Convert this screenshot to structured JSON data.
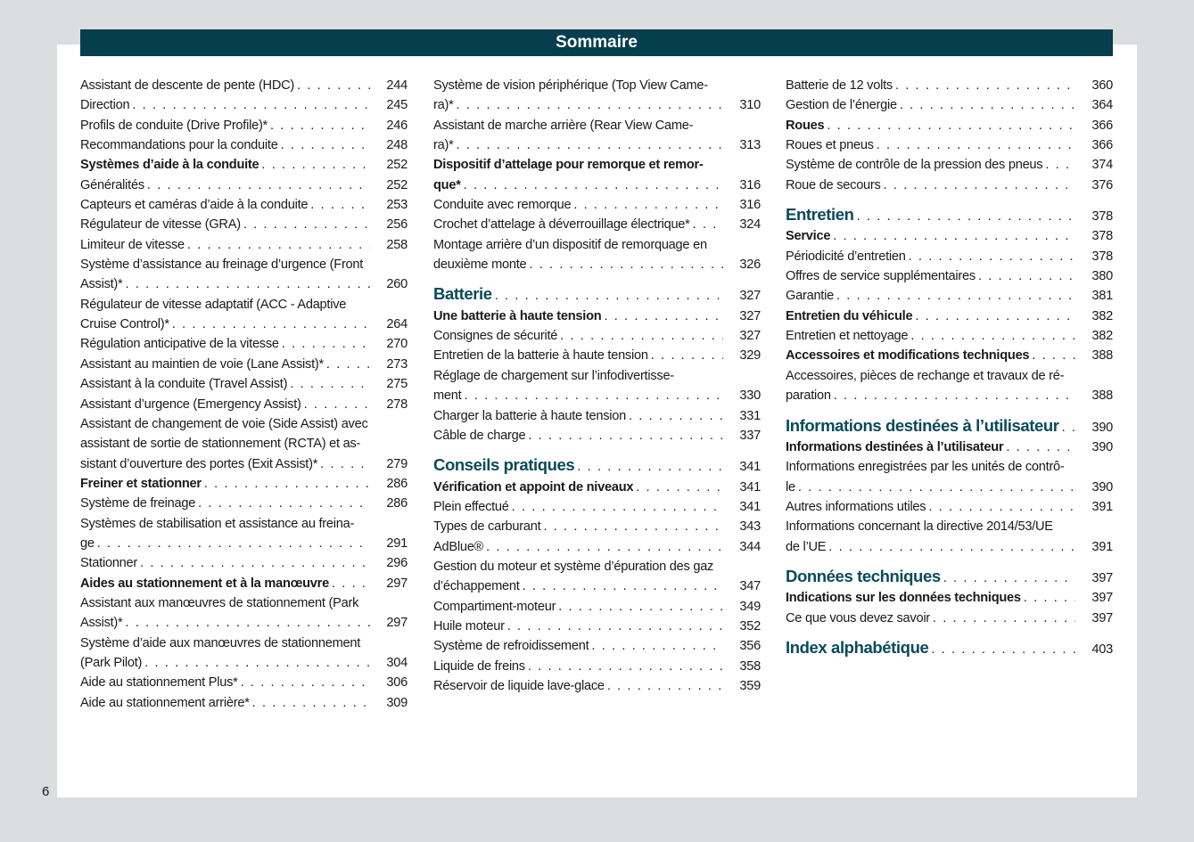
{
  "header": {
    "title": "Sommaire"
  },
  "page_number": "6",
  "columns": [
    [
      {
        "lines": [
          "Assistant de descente de pente (HDC)"
        ],
        "page": "244",
        "style": "n"
      },
      {
        "lines": [
          "Direction"
        ],
        "page": "245",
        "style": "n"
      },
      {
        "lines": [
          "Profils de conduite (Drive Profile)*"
        ],
        "page": "246",
        "style": "n"
      },
      {
        "lines": [
          "Recommandations pour la conduite"
        ],
        "page": "248",
        "style": "n"
      },
      {
        "lines": [
          "Systèmes d’aide à la conduite"
        ],
        "page": "252",
        "style": "h2"
      },
      {
        "lines": [
          "Généralités"
        ],
        "page": "252",
        "style": "n"
      },
      {
        "lines": [
          "Capteurs et caméras d’aide à la conduite"
        ],
        "page": "253",
        "style": "n"
      },
      {
        "lines": [
          "Régulateur de vitesse (GRA)"
        ],
        "page": "256",
        "style": "n"
      },
      {
        "lines": [
          "Limiteur de vitesse"
        ],
        "page": "258",
        "style": "n"
      },
      {
        "lines": [
          "Système d’assistance au freinage d’urgence (Front",
          "Assist)*"
        ],
        "page": "260",
        "style": "n"
      },
      {
        "lines": [
          "Régulateur de vitesse adaptatif (ACC - Adaptive",
          "Cruise Control)*"
        ],
        "page": "264",
        "style": "n"
      },
      {
        "lines": [
          "Régulation anticipative de la vitesse"
        ],
        "page": "270",
        "style": "n"
      },
      {
        "lines": [
          "Assistant au maintien de voie (Lane Assist)*"
        ],
        "page": "273",
        "style": "n"
      },
      {
        "lines": [
          "Assistant à la conduite (Travel Assist)"
        ],
        "page": "275",
        "style": "n"
      },
      {
        "lines": [
          "Assistant d’urgence (Emergency Assist)"
        ],
        "page": "278",
        "style": "n"
      },
      {
        "lines": [
          "Assistant de changement de voie (Side Assist) avec",
          "assistant de sortie de stationnement (RCTA) et as-",
          "sistant d’ouverture des portes (Exit Assist)*"
        ],
        "page": "279",
        "style": "n"
      },
      {
        "lines": [
          "Freiner et stationner"
        ],
        "page": "286",
        "style": "h2"
      },
      {
        "lines": [
          "Système de freinage"
        ],
        "page": "286",
        "style": "n"
      },
      {
        "lines": [
          "Systèmes de stabilisation et assistance au freina-",
          "ge"
        ],
        "page": "291",
        "style": "n"
      },
      {
        "lines": [
          "Stationner"
        ],
        "page": "296",
        "style": "n"
      },
      {
        "lines": [
          "Aides au stationnement et à la manœuvre"
        ],
        "page": "297",
        "style": "h2"
      },
      {
        "lines": [
          "Assistant aux manœuvres de stationnement (Park",
          "Assist)*"
        ],
        "page": "297",
        "style": "n"
      },
      {
        "lines": [
          "Système d’aide aux manœuvres de stationnement",
          "(Park Pilot)"
        ],
        "page": "304",
        "style": "n"
      },
      {
        "lines": [
          "Aide au stationnement Plus*"
        ],
        "page": "306",
        "style": "n"
      },
      {
        "lines": [
          "Aide au stationnement arrière*"
        ],
        "page": "309",
        "style": "n"
      }
    ],
    [
      {
        "lines": [
          "Système de vision périphérique (Top View Came-",
          "ra)*"
        ],
        "page": "310",
        "style": "n"
      },
      {
        "lines": [
          "Assistant de marche arrière (Rear View Came-",
          "ra)*"
        ],
        "page": "313",
        "style": "n"
      },
      {
        "lines": [
          "Dispositif d’attelage pour remorque et remor-",
          "que*"
        ],
        "page": "316",
        "style": "h2"
      },
      {
        "lines": [
          "Conduite avec remorque"
        ],
        "page": "316",
        "style": "n"
      },
      {
        "lines": [
          "Crochet d’attelage à déverrouillage électrique*"
        ],
        "page": "324",
        "style": "n"
      },
      {
        "lines": [
          "Montage arrière d’un dispositif de remorquage en",
          "deuxième monte"
        ],
        "page": "326",
        "style": "n"
      },
      {
        "lines": [
          "Batterie"
        ],
        "page": "327",
        "style": "h1"
      },
      {
        "lines": [
          "Une batterie à haute tension"
        ],
        "page": "327",
        "style": "h2"
      },
      {
        "lines": [
          "Consignes de sécurité"
        ],
        "page": "327",
        "style": "n"
      },
      {
        "lines": [
          "Entretien de la batterie à haute tension"
        ],
        "page": "329",
        "style": "n"
      },
      {
        "lines": [
          "Réglage de chargement sur l’infodivertisse-",
          "ment"
        ],
        "page": "330",
        "style": "n"
      },
      {
        "lines": [
          "Charger la batterie à haute tension"
        ],
        "page": "331",
        "style": "n"
      },
      {
        "lines": [
          "Câble de charge"
        ],
        "page": "337",
        "style": "n"
      },
      {
        "lines": [
          "Conseils pratiques"
        ],
        "page": "341",
        "style": "h1"
      },
      {
        "lines": [
          "Vérification et appoint de niveaux"
        ],
        "page": "341",
        "style": "h2"
      },
      {
        "lines": [
          "Plein effectué"
        ],
        "page": "341",
        "style": "n"
      },
      {
        "lines": [
          "Types de carburant"
        ],
        "page": "343",
        "style": "n"
      },
      {
        "lines": [
          "AdBlue®"
        ],
        "page": "344",
        "style": "n"
      },
      {
        "lines": [
          "Gestion du moteur et système d’épuration des gaz",
          "d’échappement"
        ],
        "page": "347",
        "style": "n"
      },
      {
        "lines": [
          "Compartiment-moteur"
        ],
        "page": "349",
        "style": "n"
      },
      {
        "lines": [
          "Huile moteur"
        ],
        "page": "352",
        "style": "n"
      },
      {
        "lines": [
          "Système de refroidissement"
        ],
        "page": "356",
        "style": "n"
      },
      {
        "lines": [
          "Liquide de freins"
        ],
        "page": "358",
        "style": "n"
      },
      {
        "lines": [
          "Réservoir de liquide lave-glace"
        ],
        "page": "359",
        "style": "n"
      }
    ],
    [
      {
        "lines": [
          "Batterie de 12 volts"
        ],
        "page": "360",
        "style": "n"
      },
      {
        "lines": [
          "Gestion de l’énergie"
        ],
        "page": "364",
        "style": "n"
      },
      {
        "lines": [
          "Roues"
        ],
        "page": "366",
        "style": "h2"
      },
      {
        "lines": [
          "Roues et pneus"
        ],
        "page": "366",
        "style": "n"
      },
      {
        "lines": [
          "Système de contrôle de la pression des pneus"
        ],
        "page": "374",
        "style": "n"
      },
      {
        "lines": [
          "Roue de secours"
        ],
        "page": "376",
        "style": "n"
      },
      {
        "lines": [
          "Entretien"
        ],
        "page": "378",
        "style": "h1"
      },
      {
        "lines": [
          "Service"
        ],
        "page": "378",
        "style": "h2"
      },
      {
        "lines": [
          "Périodicité d’entretien"
        ],
        "page": "378",
        "style": "n"
      },
      {
        "lines": [
          "Offres de service supplémentaires"
        ],
        "page": "380",
        "style": "n"
      },
      {
        "lines": [
          "Garantie"
        ],
        "page": "381",
        "style": "n"
      },
      {
        "lines": [
          "Entretien du véhicule"
        ],
        "page": "382",
        "style": "h2"
      },
      {
        "lines": [
          "Entretien et nettoyage"
        ],
        "page": "382",
        "style": "n"
      },
      {
        "lines": [
          "Accessoires et modifications techniques"
        ],
        "page": "388",
        "style": "h2"
      },
      {
        "lines": [
          "Accessoires, pièces de rechange et travaux de ré-",
          "paration"
        ],
        "page": "388",
        "style": "n"
      },
      {
        "lines": [
          "Informations destinées à l’utilisateur"
        ],
        "page": "390",
        "style": "h1"
      },
      {
        "lines": [
          "Informations destinées à l’utilisateur"
        ],
        "page": "390",
        "style": "h2"
      },
      {
        "lines": [
          "Informations enregistrées par les unités de contrô-",
          "le"
        ],
        "page": "390",
        "style": "n"
      },
      {
        "lines": [
          "Autres informations utiles"
        ],
        "page": "391",
        "style": "n"
      },
      {
        "lines": [
          "Informations concernant la directive 2014/53/UE",
          "de l’UE"
        ],
        "page": "391",
        "style": "n"
      },
      {
        "lines": [
          "Données techniques"
        ],
        "page": "397",
        "style": "h1"
      },
      {
        "lines": [
          "Indications sur les données techniques"
        ],
        "page": "397",
        "style": "h2"
      },
      {
        "lines": [
          "Ce que vous devez savoir"
        ],
        "page": "397",
        "style": "n"
      },
      {
        "lines": [
          "Index alphabétique"
        ],
        "page": "403",
        "style": "h1"
      }
    ]
  ]
}
